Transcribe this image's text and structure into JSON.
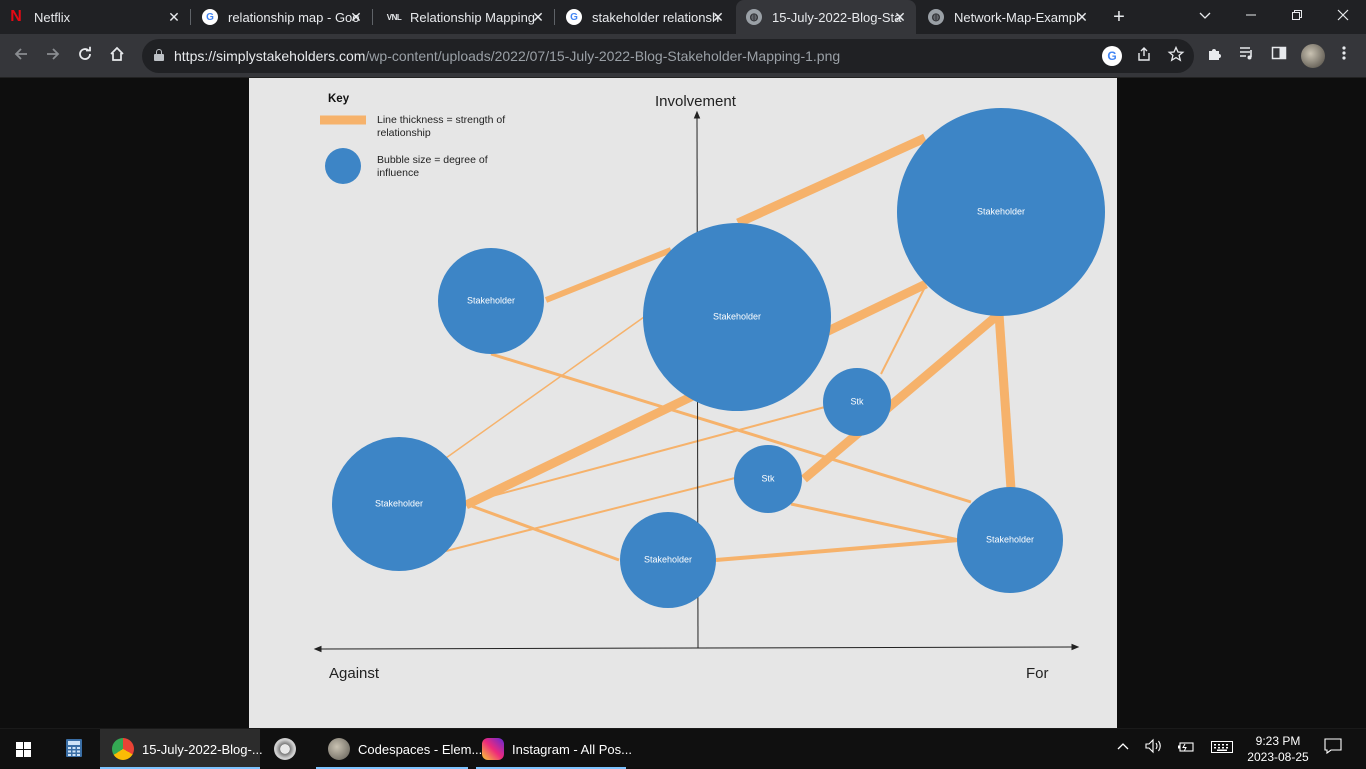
{
  "browser": {
    "tabs": [
      {
        "title": "Netflix",
        "icon": "netflix-icon",
        "active": false
      },
      {
        "title": "relationship map - Goo",
        "icon": "google-icon",
        "active": false
      },
      {
        "title": "Relationship Mapping",
        "icon": "vnl-icon",
        "active": false
      },
      {
        "title": "stakeholder relationsh",
        "icon": "google-icon",
        "active": false
      },
      {
        "title": "15-July-2022-Blog-Sta",
        "icon": "globe-icon",
        "active": true
      },
      {
        "title": "Network-Map-Exampl",
        "icon": "globe-icon",
        "active": false
      }
    ],
    "new_tab_glyph": "+",
    "address": {
      "host": "https://simplystakeholders.com",
      "path": "/wp-content/uploads/2022/07/15-July-2022-Blog-Stakeholder-Mapping-1.png"
    },
    "favicon_labels": {
      "netflix": "N",
      "google": "G",
      "vnl": "VNL",
      "globe": "◍"
    },
    "colors": {
      "tab_strip": "#202124",
      "toolbar": "#35363a",
      "omnibox": "#202124"
    }
  },
  "diagram": {
    "key": {
      "title": "Key",
      "line_label_1": "Line thickness = strength of",
      "line_label_2": "relationship",
      "bubble_label_1": "Bubble size = degree of",
      "bubble_label_2": "influence"
    },
    "axes": {
      "y_label": "Involvement",
      "x_left_label": "Against",
      "x_right_label": "For"
    },
    "bubbles": {
      "big_top_right": "Stakeholder",
      "center": "Stakeholder",
      "upper_left": "Stakeholder",
      "small_stk_right": "Stk",
      "small_stk_mid": "Stk",
      "lower_left": "Stakeholder",
      "bottom_mid": "Stakeholder",
      "bottom_right": "Stakeholder"
    },
    "colors": {
      "bubble": "#3d85c6",
      "line": "#f6b26b",
      "background": "#e6e6e6"
    }
  },
  "taskbar": {
    "apps": [
      {
        "label": "15-July-2022-Blog-...",
        "active": true
      },
      {
        "label": "Codespaces - Elem...",
        "active": false
      },
      {
        "label": "Instagram - All Pos...",
        "active": false
      }
    ],
    "clock_time": "9:23 PM",
    "clock_date": "2023-08-25"
  }
}
